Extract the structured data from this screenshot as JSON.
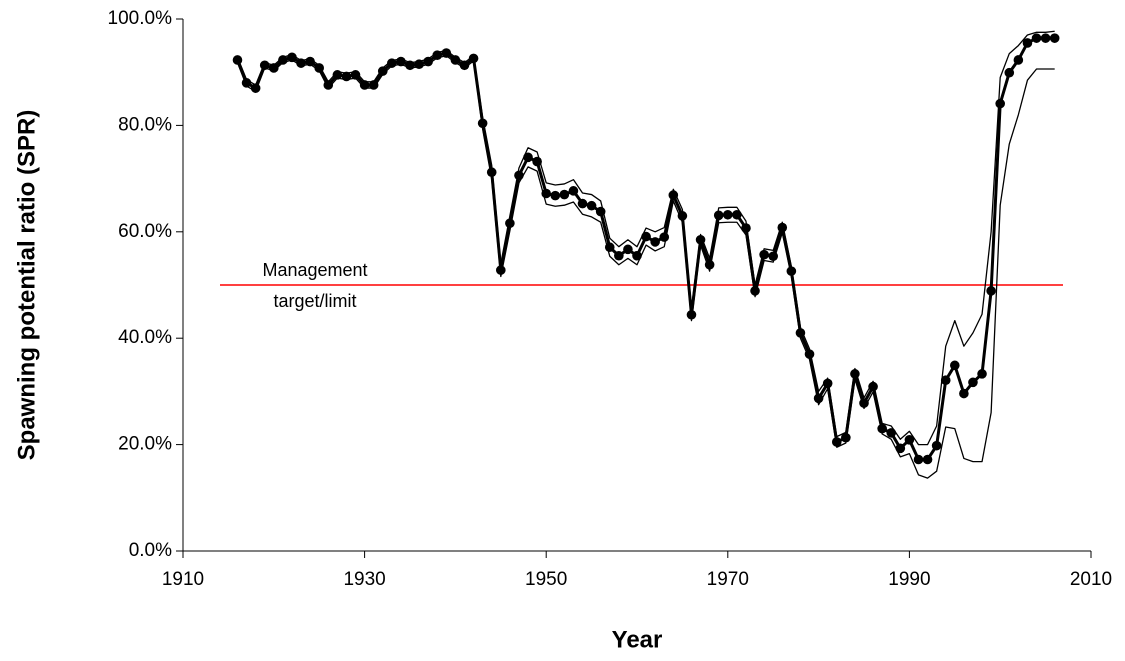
{
  "chart_data": {
    "type": "line",
    "xlabel": "Year",
    "ylabel": "Spawning potential ratio (SPR)",
    "x": [
      1916,
      1917,
      1918,
      1919,
      1920,
      1921,
      1922,
      1923,
      1924,
      1925,
      1926,
      1927,
      1928,
      1929,
      1930,
      1931,
      1932,
      1933,
      1934,
      1935,
      1936,
      1937,
      1938,
      1939,
      1940,
      1941,
      1942,
      1943,
      1944,
      1945,
      1946,
      1947,
      1948,
      1949,
      1950,
      1951,
      1952,
      1953,
      1954,
      1955,
      1956,
      1957,
      1958,
      1959,
      1960,
      1961,
      1962,
      1963,
      1964,
      1965,
      1966,
      1967,
      1968,
      1969,
      1970,
      1971,
      1972,
      1973,
      1974,
      1975,
      1976,
      1977,
      1978,
      1979,
      1980,
      1981,
      1982,
      1983,
      1984,
      1985,
      1986,
      1987,
      1988,
      1989,
      1990,
      1991,
      1992,
      1993,
      1994,
      1995,
      1996,
      1997,
      1998,
      1999,
      2000,
      2001,
      2002,
      2003,
      2004,
      2005,
      2006
    ],
    "series": [
      {
        "color": "#000000",
        "marker": true,
        "width": 3,
        "values": [
          92.3,
          88,
          87,
          91.3,
          90.8,
          92.3,
          92.8,
          91.7,
          92,
          90.8,
          87.6,
          89.5,
          89.2,
          89.5,
          87.6,
          87.6,
          90.2,
          91.7,
          92,
          91.3,
          91.5,
          92,
          93.2,
          93.6,
          92.3,
          91.3,
          92.6,
          80.4,
          71.2,
          52.8,
          61.6,
          70.6,
          74,
          73.2,
          67.2,
          66.8,
          67,
          67.7,
          65.3,
          64.9,
          63.8,
          57.1,
          55.5,
          56.7,
          55.5,
          59.1,
          58.1,
          59,
          66.9,
          63,
          44.4,
          58.5,
          53.8,
          63.1,
          63.2,
          63.2,
          60.7,
          48.9,
          55.7,
          55.4,
          60.8,
          52.6,
          41,
          37,
          28.7,
          31.5,
          20.5,
          21.3,
          33.3,
          27.8,
          30.9,
          23,
          22.2,
          19.3,
          20.9,
          17.2,
          17.2,
          19.8,
          32.1,
          34.9,
          29.6,
          31.7,
          33.3,
          48.9,
          84.1,
          89.9,
          92.3,
          95.5,
          96.4,
          96.4,
          96.4
        ]
      },
      {
        "color": "#000000",
        "marker": false,
        "width": 1.3,
        "values": [
          92.8,
          88.6,
          87.6,
          91.8,
          91.3,
          92.8,
          93.3,
          92.2,
          92.5,
          91.3,
          88.2,
          90.1,
          89.8,
          90.1,
          88.2,
          88.2,
          90.8,
          92.2,
          92.5,
          91.8,
          92,
          92.5,
          93.7,
          94.1,
          92.8,
          91.8,
          93.1,
          81.5,
          72.5,
          54,
          63,
          72,
          75.8,
          75,
          69.2,
          68.8,
          69,
          69.8,
          67.3,
          67,
          65.8,
          58.8,
          57.2,
          58.5,
          57.2,
          60.7,
          60,
          60.8,
          68,
          64.2,
          45.5,
          59.5,
          55,
          64.5,
          64.6,
          64.6,
          62,
          50,
          56.8,
          56.5,
          61.8,
          53.5,
          42,
          38,
          30,
          32.5,
          21.5,
          22.3,
          34.3,
          28.8,
          31.9,
          24,
          23.5,
          21,
          22.5,
          20,
          20,
          23.5,
          38.5,
          43.3,
          38.5,
          41,
          44.5,
          60,
          89,
          93.5,
          95,
          97,
          97.5,
          97.5,
          97.7
        ]
      },
      {
        "color": "#000000",
        "marker": false,
        "width": 1.3,
        "values": [
          91.8,
          87.4,
          86.4,
          90.8,
          90.3,
          91.8,
          92.3,
          91.2,
          91.5,
          90.3,
          87,
          88.9,
          88.6,
          88.9,
          87,
          87,
          89.6,
          91.2,
          91.5,
          90.8,
          91,
          91.5,
          92.7,
          93.1,
          91.8,
          90.8,
          92.1,
          79.3,
          69.9,
          51.6,
          60.2,
          69.2,
          72.2,
          71.4,
          65.2,
          64.8,
          65,
          65.6,
          63.3,
          62.8,
          61.8,
          55.4,
          53.8,
          55,
          53.8,
          57.5,
          56.4,
          57.2,
          65.8,
          61.8,
          43.3,
          57.5,
          52.6,
          61.7,
          61.8,
          61.8,
          59.4,
          47.8,
          54.6,
          54.3,
          59.8,
          51.6,
          40,
          36,
          27.5,
          30.5,
          19.5,
          20.3,
          32.3,
          26.8,
          29.9,
          22,
          21,
          17.7,
          18.3,
          14.3,
          13.7,
          15,
          23.3,
          23,
          17.4,
          16.8,
          16.8,
          26,
          65,
          76.5,
          82,
          88.5,
          90.6,
          90.6,
          90.6
        ]
      }
    ],
    "reference_line": {
      "value": 50,
      "color": "#ff0000",
      "label": [
        "Management",
        "target/limit"
      ]
    },
    "xlim": [
      1910,
      2010
    ],
    "xticks": [
      1910,
      1930,
      1950,
      1970,
      1990,
      2010
    ],
    "ylim": [
      0,
      100
    ],
    "yticks": [
      {
        "value": 0,
        "label": "0.0%"
      },
      {
        "value": 20,
        "label": "20.0%"
      },
      {
        "value": 40,
        "label": "40.0%"
      },
      {
        "value": 60,
        "label": "60.0%"
      },
      {
        "value": 80,
        "label": "80.0%"
      },
      {
        "value": 100,
        "label": "100.0%"
      }
    ]
  }
}
